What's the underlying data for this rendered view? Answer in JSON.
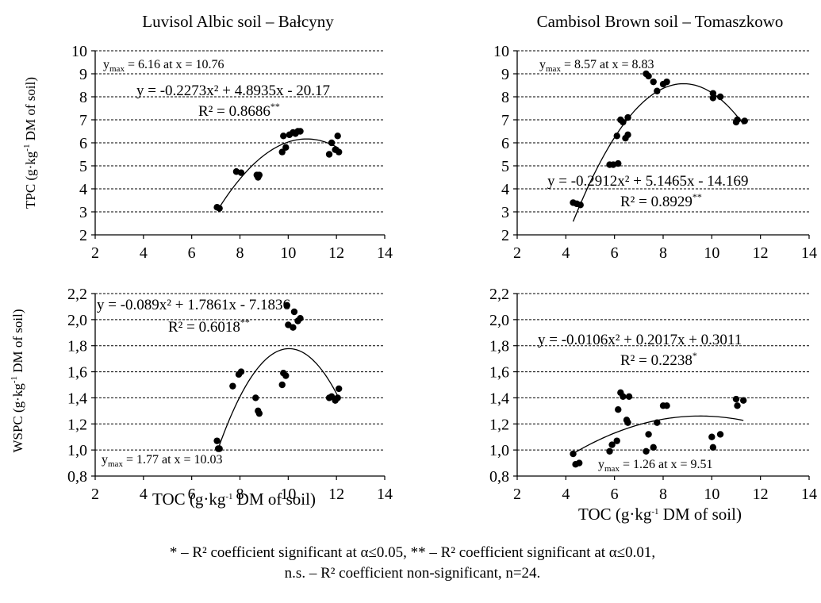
{
  "figure": {
    "footnote_line1": "* – R² coefficient significant at α≤0.05, ** – R² coefficient significant at α≤0.01,",
    "footnote_line2": "n.s. – R² coefficient non-significant, n=24."
  },
  "chart_data": [
    {
      "id": "tpc-balcyny",
      "type": "scatter",
      "title": "Luvisol Albic soil – Bałcyny",
      "ylabel": "TPC (g·kg-1 DM of soil)",
      "xlabel": "",
      "xlim": [
        2,
        14
      ],
      "ylim": [
        2,
        10
      ],
      "xticks": [
        2,
        4,
        6,
        8,
        10,
        12,
        14
      ],
      "yticks": [
        2,
        3,
        4,
        5,
        6,
        7,
        8,
        9,
        10
      ],
      "ytick_labels": [
        "2",
        "3",
        "4",
        "5",
        "6",
        "7",
        "8",
        "9",
        "10"
      ],
      "grid_y": true,
      "points": [
        [
          7.05,
          3.2
        ],
        [
          7.15,
          3.15
        ],
        [
          7.85,
          4.75
        ],
        [
          8.05,
          4.7
        ],
        [
          8.7,
          4.6
        ],
        [
          8.75,
          4.5
        ],
        [
          8.8,
          4.6
        ],
        [
          9.75,
          5.6
        ],
        [
          9.8,
          6.3
        ],
        [
          9.9,
          5.8
        ],
        [
          10.05,
          6.35
        ],
        [
          10.2,
          6.45
        ],
        [
          10.3,
          6.4
        ],
        [
          10.4,
          6.5
        ],
        [
          10.5,
          6.5
        ],
        [
          11.7,
          5.5
        ],
        [
          11.8,
          6.0
        ],
        [
          11.95,
          5.7
        ],
        [
          12.05,
          6.3
        ],
        [
          12.1,
          5.6
        ]
      ],
      "fit": {
        "a": -0.2273,
        "b": 4.8935,
        "c": -20.17,
        "x_range": [
          7.1,
          12.1
        ]
      },
      "annotations": {
        "ymax_prefix": "y",
        "ymax_sub": "max",
        "ymax_text": " = 6.16 at x = 10.76",
        "equation": "y = -0.2273x² + 4.8935x - 20.17",
        "r2": "R² = 0.8686",
        "r2_sig": "**"
      }
    },
    {
      "id": "tpc-tomaszkowo",
      "type": "scatter",
      "title": "Cambisol Brown soil – Tomaszkowo",
      "ylabel": "",
      "xlabel": "",
      "xlim": [
        2,
        14
      ],
      "ylim": [
        2,
        10
      ],
      "xticks": [
        2,
        4,
        6,
        8,
        10,
        12,
        14
      ],
      "yticks": [
        2,
        3,
        4,
        5,
        6,
        7,
        8,
        9,
        10
      ],
      "ytick_labels": [
        "2",
        "3",
        "4",
        "5",
        "6",
        "7",
        "8",
        "9",
        "10"
      ],
      "grid_y": true,
      "points": [
        [
          4.3,
          3.4
        ],
        [
          4.45,
          3.35
        ],
        [
          4.6,
          3.3
        ],
        [
          5.8,
          5.05
        ],
        [
          5.95,
          5.05
        ],
        [
          6.15,
          5.1
        ],
        [
          6.1,
          6.3
        ],
        [
          6.25,
          7.0
        ],
        [
          6.35,
          6.9
        ],
        [
          6.45,
          6.2
        ],
        [
          6.55,
          7.1
        ],
        [
          6.55,
          6.35
        ],
        [
          7.3,
          9.0
        ],
        [
          7.4,
          8.9
        ],
        [
          7.6,
          8.65
        ],
        [
          7.75,
          8.25
        ],
        [
          8.0,
          8.55
        ],
        [
          8.15,
          8.65
        ],
        [
          10.05,
          8.15
        ],
        [
          10.05,
          7.95
        ],
        [
          10.35,
          8.0
        ],
        [
          11.0,
          6.9
        ],
        [
          11.05,
          7.0
        ],
        [
          11.35,
          6.95
        ]
      ],
      "fit": {
        "a": -0.2912,
        "b": 5.1465,
        "c": -14.169,
        "x_range": [
          4.3,
          11.3
        ]
      },
      "annotations": {
        "ymax_prefix": "y",
        "ymax_sub": "max",
        "ymax_text": " = 8.57 at x = 8.83",
        "equation": "y = -0.2912x² + 5.1465x - 14.169",
        "r2": "R² = 0.8929",
        "r2_sig": "**"
      }
    },
    {
      "id": "wspc-balcyny",
      "type": "scatter",
      "title": "",
      "ylabel": "WSPC (g·kg-1 DM of soil)",
      "xlabel": "TOC (g·kg-1 DM of soil)",
      "xlim": [
        2,
        14
      ],
      "ylim": [
        0.8,
        2.2
      ],
      "xticks": [
        2,
        4,
        6,
        8,
        10,
        12,
        14
      ],
      "yticks": [
        0.8,
        1.0,
        1.2,
        1.4,
        1.6,
        1.8,
        2.0,
        2.2
      ],
      "ytick_labels": [
        "0,8",
        "1,0",
        "1,2",
        "1,4",
        "1,6",
        "1,8",
        "2,0",
        "2,2"
      ],
      "grid_y": true,
      "points": [
        [
          7.05,
          1.07
        ],
        [
          7.1,
          1.01
        ],
        [
          7.15,
          1.01
        ],
        [
          7.7,
          1.49
        ],
        [
          7.95,
          1.58
        ],
        [
          8.05,
          1.6
        ],
        [
          8.65,
          1.4
        ],
        [
          8.75,
          1.3
        ],
        [
          8.8,
          1.28
        ],
        [
          9.75,
          1.5
        ],
        [
          9.8,
          1.59
        ],
        [
          9.9,
          1.57
        ],
        [
          9.95,
          2.11
        ],
        [
          10.0,
          1.96
        ],
        [
          10.2,
          1.94
        ],
        [
          10.25,
          2.06
        ],
        [
          10.4,
          1.99
        ],
        [
          10.5,
          2.01
        ],
        [
          11.7,
          1.4
        ],
        [
          11.8,
          1.41
        ],
        [
          11.95,
          1.38
        ],
        [
          12.05,
          1.4
        ],
        [
          12.1,
          1.47
        ]
      ],
      "fit": {
        "a": -0.089,
        "b": 1.7861,
        "c": -7.1836,
        "x_range": [
          7.1,
          12.1
        ]
      },
      "annotations": {
        "ymax_prefix": "y",
        "ymax_sub": "max",
        "ymax_text": " = 1.77 at x = 10.03",
        "equation": "y = -0.089x² + 1.7861x - 7.1836",
        "r2": "R² = 0.6018",
        "r2_sig": "**"
      }
    },
    {
      "id": "wspc-tomaszkowo",
      "type": "scatter",
      "title": "",
      "ylabel": "",
      "xlabel": "TOC (g·kg-1 DM of soil)",
      "xlim": [
        2,
        14
      ],
      "ylim": [
        0.8,
        2.2
      ],
      "xticks": [
        2,
        4,
        6,
        8,
        10,
        12,
        14
      ],
      "yticks": [
        0.8,
        1.0,
        1.2,
        1.4,
        1.6,
        1.8,
        2.0,
        2.2
      ],
      "ytick_labels": [
        "0,8",
        "1,0",
        "1,2",
        "1,4",
        "1,6",
        "1,8",
        "2,0",
        "2,2"
      ],
      "grid_y": true,
      "points": [
        [
          4.3,
          0.97
        ],
        [
          4.4,
          0.89
        ],
        [
          4.55,
          0.9
        ],
        [
          5.8,
          0.99
        ],
        [
          5.9,
          1.04
        ],
        [
          6.1,
          1.07
        ],
        [
          6.15,
          1.31
        ],
        [
          6.25,
          1.44
        ],
        [
          6.35,
          1.41
        ],
        [
          6.5,
          1.23
        ],
        [
          6.55,
          1.21
        ],
        [
          6.6,
          1.41
        ],
        [
          7.3,
          0.99
        ],
        [
          7.4,
          1.12
        ],
        [
          7.6,
          1.02
        ],
        [
          7.75,
          1.21
        ],
        [
          8.0,
          1.34
        ],
        [
          8.15,
          1.34
        ],
        [
          10.0,
          1.1
        ],
        [
          10.05,
          1.02
        ],
        [
          10.35,
          1.12
        ],
        [
          11.0,
          1.39
        ],
        [
          11.05,
          1.34
        ],
        [
          11.3,
          1.38
        ]
      ],
      "fit": {
        "a": -0.0106,
        "b": 0.2017,
        "c": 0.3011,
        "x_range": [
          4.3,
          11.3
        ]
      },
      "annotations": {
        "ymax_prefix": "y",
        "ymax_sub": "max",
        "ymax_text": " = 1.26 at x = 9.51",
        "equation": "y = -0.0106x² + 0.2017x + 0.3011",
        "r2": "R² = 0.2238",
        "r2_sig": "*"
      }
    }
  ]
}
